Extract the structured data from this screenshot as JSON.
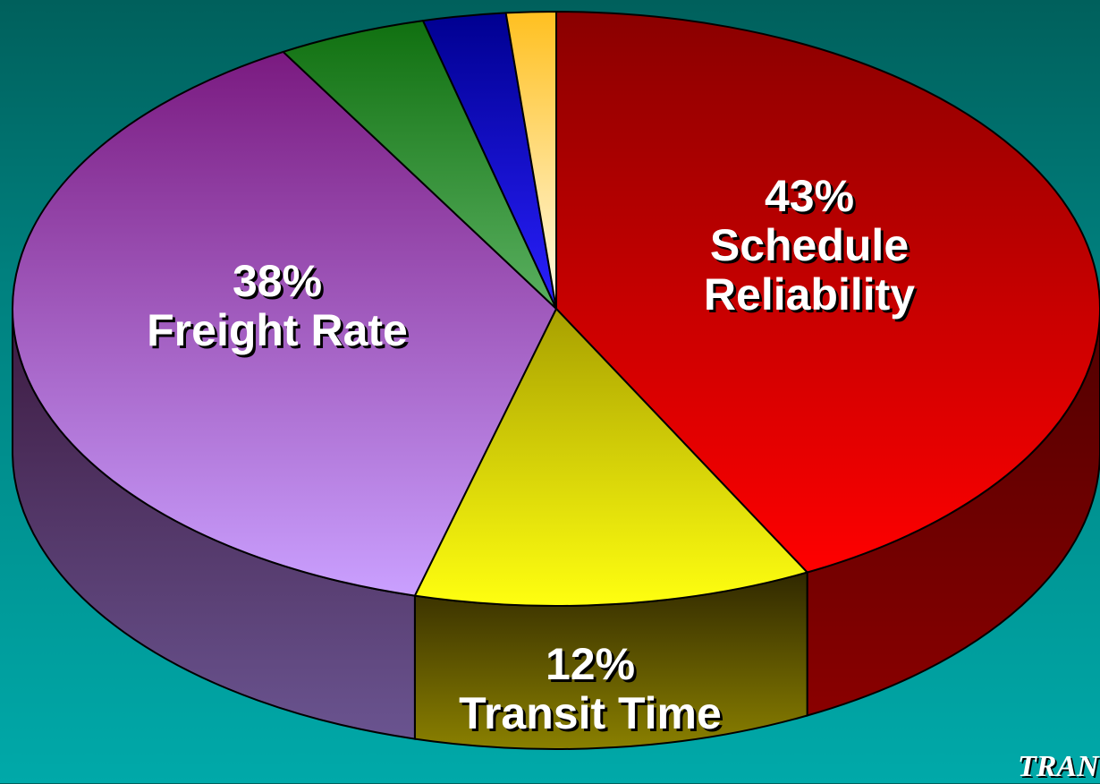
{
  "chart_data": {
    "type": "pie",
    "style": "3d",
    "slices": [
      {
        "label": "Schedule Reliability",
        "value": 43,
        "display": "43%",
        "color": "#dd0000"
      },
      {
        "label": "Transit Time",
        "value": 12,
        "display": "12%",
        "color": "#f2f000"
      },
      {
        "label": "Freight Rate",
        "value": 38,
        "display": "38%",
        "color": "#b07ad8"
      },
      {
        "value": 4.5,
        "color": "#38a040"
      },
      {
        "value": 2.5,
        "color": "#1a12d8"
      },
      {
        "value": 1.5,
        "color": "#fff0c0"
      }
    ],
    "labels": {
      "schedule": {
        "pct": "43%",
        "line1": "Schedule",
        "line2": "Reliability"
      },
      "freight": {
        "pct": "38%",
        "name": "Freight Rate"
      },
      "transit": {
        "pct": "12%",
        "name": "Transit Time"
      }
    }
  },
  "logo": {
    "text": "TRAN"
  }
}
